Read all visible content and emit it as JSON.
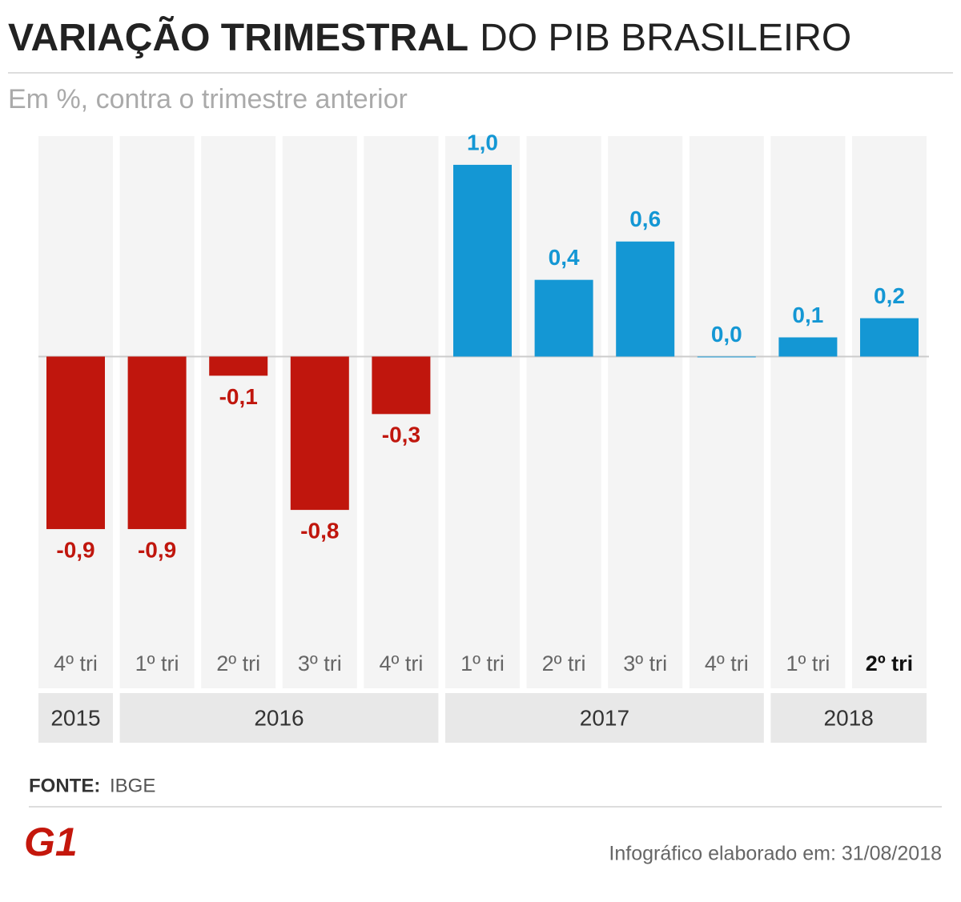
{
  "chart_data": {
    "type": "bar",
    "title_bold": "VARIAÇÃO TRIMESTRAL",
    "title_light": "DO PIB BRASILEIRO",
    "subtitle": "Em %, contra o trimestre anterior",
    "categories": [
      "4º tri",
      "1º tri",
      "2º tri",
      "3º tri",
      "4º tri",
      "1º tri",
      "2º tri",
      "3º tri",
      "4º tri",
      "1º tri",
      "2º tri"
    ],
    "values": [
      -0.9,
      -0.9,
      -0.1,
      -0.8,
      -0.3,
      1.0,
      0.4,
      0.6,
      0.0,
      0.1,
      0.2
    ],
    "value_labels": [
      "-0,9",
      "-0,9",
      "-0,1",
      "-0,8",
      "-0,3",
      "1,0",
      "0,4",
      "0,6",
      "0,0",
      "0,1",
      "0,2"
    ],
    "colors": [
      "#c0160d",
      "#c0160d",
      "#c0160d",
      "#c0160d",
      "#c0160d",
      "#1497d4",
      "#1497d4",
      "#1497d4",
      "#1497d4",
      "#1497d4",
      "#1497d4"
    ],
    "groups": [
      {
        "label": "2015",
        "count": 1
      },
      {
        "label": "2016",
        "count": 4
      },
      {
        "label": "2017",
        "count": 4
      },
      {
        "label": "2018",
        "count": 2
      }
    ],
    "ylim": [
      -1.48,
      1.15
    ],
    "source_label": "FONTE:",
    "source": "IBGE",
    "logo": "G1",
    "footer": "Infográfico elaborado em: 31/08/2018"
  }
}
